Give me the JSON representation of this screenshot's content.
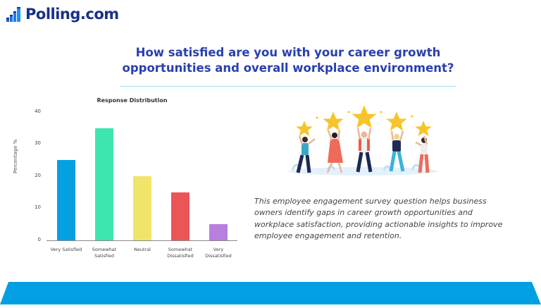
{
  "brand": {
    "name": "Polling.com",
    "color": "#1a2f8a"
  },
  "title": {
    "line1": "How satisfied are you with your career growth",
    "line2": "opportunities and overall workplace environment?"
  },
  "description": "This employee engagement survey question helps business owners identify gaps in career growth opportunities and workplace satisfaction, providing actionable insights to improve employee engagement and retention.",
  "illustration": {
    "icon": "people-holding-stars-illustration",
    "star_count": 5
  },
  "footer": {
    "color": "#02a0e2"
  },
  "chart_data": {
    "type": "bar",
    "title": "Response Distribution",
    "xlabel": "",
    "ylabel": "Percentage %",
    "ylim": [
      0,
      40
    ],
    "yticks": [
      "0",
      "10",
      "20",
      "30",
      "40"
    ],
    "grid": false,
    "legend": "none",
    "categories": [
      "Very Satisfied",
      "Somewhat Satisfied",
      "Neutral",
      "Somewhat Dissatisfied",
      "Very Dissatisfied"
    ],
    "category_lines": [
      [
        "Very Satisfied",
        ""
      ],
      [
        "Somewhat",
        "Satisfied"
      ],
      [
        "Neutral",
        ""
      ],
      [
        "Somewhat",
        "Dissatisfied"
      ],
      [
        "Very",
        "Dissatisfied"
      ]
    ],
    "values": [
      25,
      35,
      20,
      15,
      5
    ],
    "colors": [
      "#04a0e2",
      "#3de6ae",
      "#f0e56a",
      "#eb5556",
      "#b77fdf"
    ]
  }
}
